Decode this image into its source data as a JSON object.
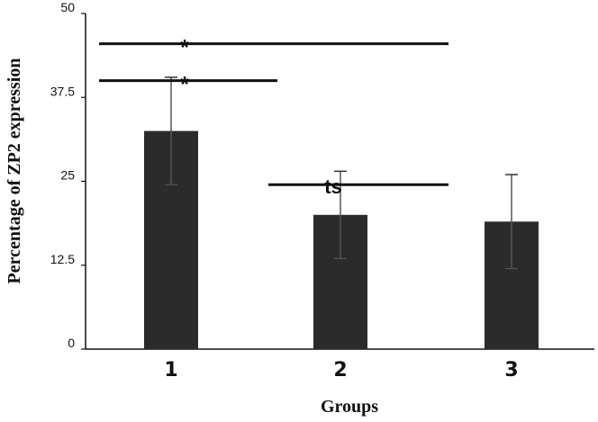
{
  "chart_data": {
    "type": "bar",
    "categories": [
      "1",
      "2",
      "3"
    ],
    "values": [
      32.5,
      20.0,
      19.0
    ],
    "error": [
      8.0,
      6.5,
      7.0
    ],
    "xlabel": "Groups",
    "ylabel": "Percentage of ZP2 expression",
    "ylim": [
      0,
      50
    ],
    "yticks": [
      "0",
      "12.5",
      "25",
      "37.5",
      "50"
    ],
    "ytick_values": [
      0,
      12.5,
      25,
      37.5,
      50
    ],
    "bar_color": "#2b2b2b",
    "grid": false,
    "annotations": [
      {
        "label": "*",
        "from": "1",
        "to": "3",
        "y": 45.5
      },
      {
        "label": "*",
        "from": "1",
        "to": "2",
        "y": 40.0
      },
      {
        "label": "ts",
        "from": "2",
        "to": "3",
        "y": 24.5
      }
    ]
  }
}
